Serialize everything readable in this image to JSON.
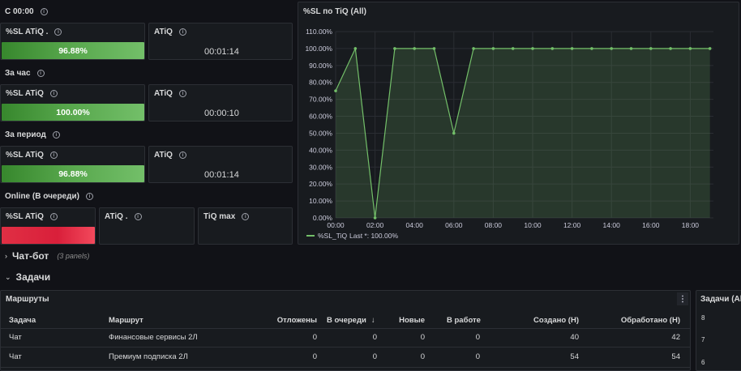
{
  "sections": {
    "since_midnight": "С 00:00",
    "per_hour": "За час",
    "per_period": "За период",
    "online": "Online (В очереди)"
  },
  "stats": {
    "row1": {
      "sl_title": "%SL ATiQ .",
      "sl_value": "96.88%",
      "sl_fraction": 0.9688,
      "atiq_title": "ATiQ",
      "atiq_value": "00:01:14"
    },
    "row2": {
      "sl_title": "%SL ATiQ",
      "sl_value": "100.00%",
      "sl_fraction": 1.0,
      "atiq_title": "ATiQ",
      "atiq_value": "00:00:10"
    },
    "row3": {
      "sl_title": "%SL ATiQ",
      "sl_value": "96.88%",
      "sl_fraction": 0.9688,
      "atiq_title": "ATiQ",
      "atiq_value": "00:01:14"
    },
    "online": {
      "sl_title": "%SL ATiQ",
      "atiq_title": "ATiQ .",
      "tiq_title": "TiQ max"
    }
  },
  "chart_title": "%SL по TiQ (All)",
  "chart_data": {
    "type": "area",
    "title": "%SL по TiQ (All)",
    "x": [
      "00:00",
      "01:00",
      "02:00",
      "03:00",
      "04:00",
      "05:00",
      "06:00",
      "07:00",
      "08:00",
      "09:00",
      "10:00",
      "11:00",
      "12:00",
      "13:00",
      "14:00",
      "15:00",
      "16:00",
      "17:00",
      "18:00",
      "19:00"
    ],
    "x_ticks": [
      "00:00",
      "02:00",
      "04:00",
      "06:00",
      "08:00",
      "10:00",
      "12:00",
      "14:00",
      "16:00",
      "18:00"
    ],
    "series": [
      {
        "name": "%SL_TiQ",
        "values": [
          75,
          100,
          0,
          100,
          100,
          100,
          50,
          100,
          100,
          100,
          100,
          100,
          100,
          100,
          100,
          100,
          100,
          100,
          100,
          100
        ]
      }
    ],
    "y_ticks": [
      "0.00%",
      "10.00%",
      "20.00%",
      "30.00%",
      "40.00%",
      "50.00%",
      "60.00%",
      "70.00%",
      "80.00%",
      "90.00%",
      "100.00%",
      "110.00%"
    ],
    "ylim": [
      0,
      110
    ],
    "grid": true,
    "legend": "bottom-left",
    "legend_text": "%SL_TiQ",
    "legend_last": "Last *: 100.00%",
    "color": "#73bf69"
  },
  "rows": {
    "chatbot": "Чат-бот",
    "chatbot_note": "(3 panels)",
    "tasks": "Задачи"
  },
  "routes": {
    "title": "Маршруты",
    "menu_icon": "more-vertical-icon",
    "columns": [
      "Задача",
      "Маршрут",
      "Отложены",
      "В очереди",
      "Новые",
      "В работе",
      "Создано (Н)",
      "Обработано (Н)"
    ],
    "rows": [
      [
        "Чат",
        "Финансовые сервисы 2Л",
        "0",
        "0",
        "0",
        "0",
        "40",
        "42"
      ],
      [
        "Чат",
        "Премиум подписка 2Л",
        "0",
        "0",
        "0",
        "0",
        "54",
        "54"
      ]
    ]
  },
  "tasks_chart": {
    "title": "Задачи (All)",
    "y_ticks": [
      "8",
      "7",
      "6"
    ]
  },
  "colors": {
    "background": "#111217",
    "panel": "#181b1f",
    "green": "#73bf69",
    "red": "#f2495c"
  }
}
